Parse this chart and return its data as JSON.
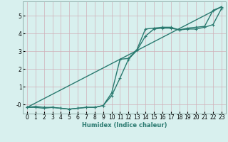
{
  "line1_x": [
    0,
    1,
    2,
    3,
    4,
    5,
    6,
    7,
    8,
    9,
    10,
    11,
    12,
    13,
    14,
    15,
    16,
    17,
    18,
    19,
    20,
    21,
    22,
    23
  ],
  "line1_y": [
    -0.15,
    -0.1,
    -0.15,
    -0.15,
    -0.2,
    -0.25,
    -0.2,
    -0.15,
    -0.15,
    -0.05,
    0.5,
    1.5,
    2.55,
    3.05,
    3.85,
    4.25,
    4.3,
    4.3,
    4.2,
    4.25,
    4.25,
    4.35,
    4.5,
    5.4
  ],
  "line2_x": [
    0,
    1,
    2,
    3,
    4,
    5,
    6,
    7,
    8,
    9,
    10,
    11,
    12,
    13,
    14,
    15,
    16,
    17,
    18,
    19,
    20,
    21,
    22,
    23
  ],
  "line2_y": [
    -0.15,
    -0.15,
    -0.2,
    -0.15,
    -0.2,
    -0.25,
    -0.2,
    -0.15,
    -0.15,
    -0.05,
    0.65,
    2.55,
    2.6,
    3.1,
    4.25,
    4.3,
    4.35,
    4.35,
    4.2,
    4.3,
    4.35,
    4.4,
    5.3,
    5.5
  ],
  "line3_x": [
    0,
    23
  ],
  "line3_y": [
    -0.15,
    5.5
  ],
  "line_color": "#2a7a70",
  "bg_color": "#d8f0ee",
  "grid_color": "#c0dcd8",
  "xlabel": "Humidex (Indice chaleur)",
  "xlim": [
    -0.5,
    23.5
  ],
  "ylim": [
    -0.5,
    5.8
  ],
  "yticks": [
    0,
    1,
    2,
    3,
    4,
    5
  ],
  "ytick_labels": [
    "0",
    "1",
    "2",
    "3",
    "4",
    "5"
  ],
  "xticks": [
    0,
    1,
    2,
    3,
    4,
    5,
    6,
    7,
    8,
    9,
    10,
    11,
    12,
    13,
    14,
    15,
    16,
    17,
    18,
    19,
    20,
    21,
    22,
    23
  ],
  "marker": "+",
  "marker_size": 3.5,
  "linewidth": 1.0
}
